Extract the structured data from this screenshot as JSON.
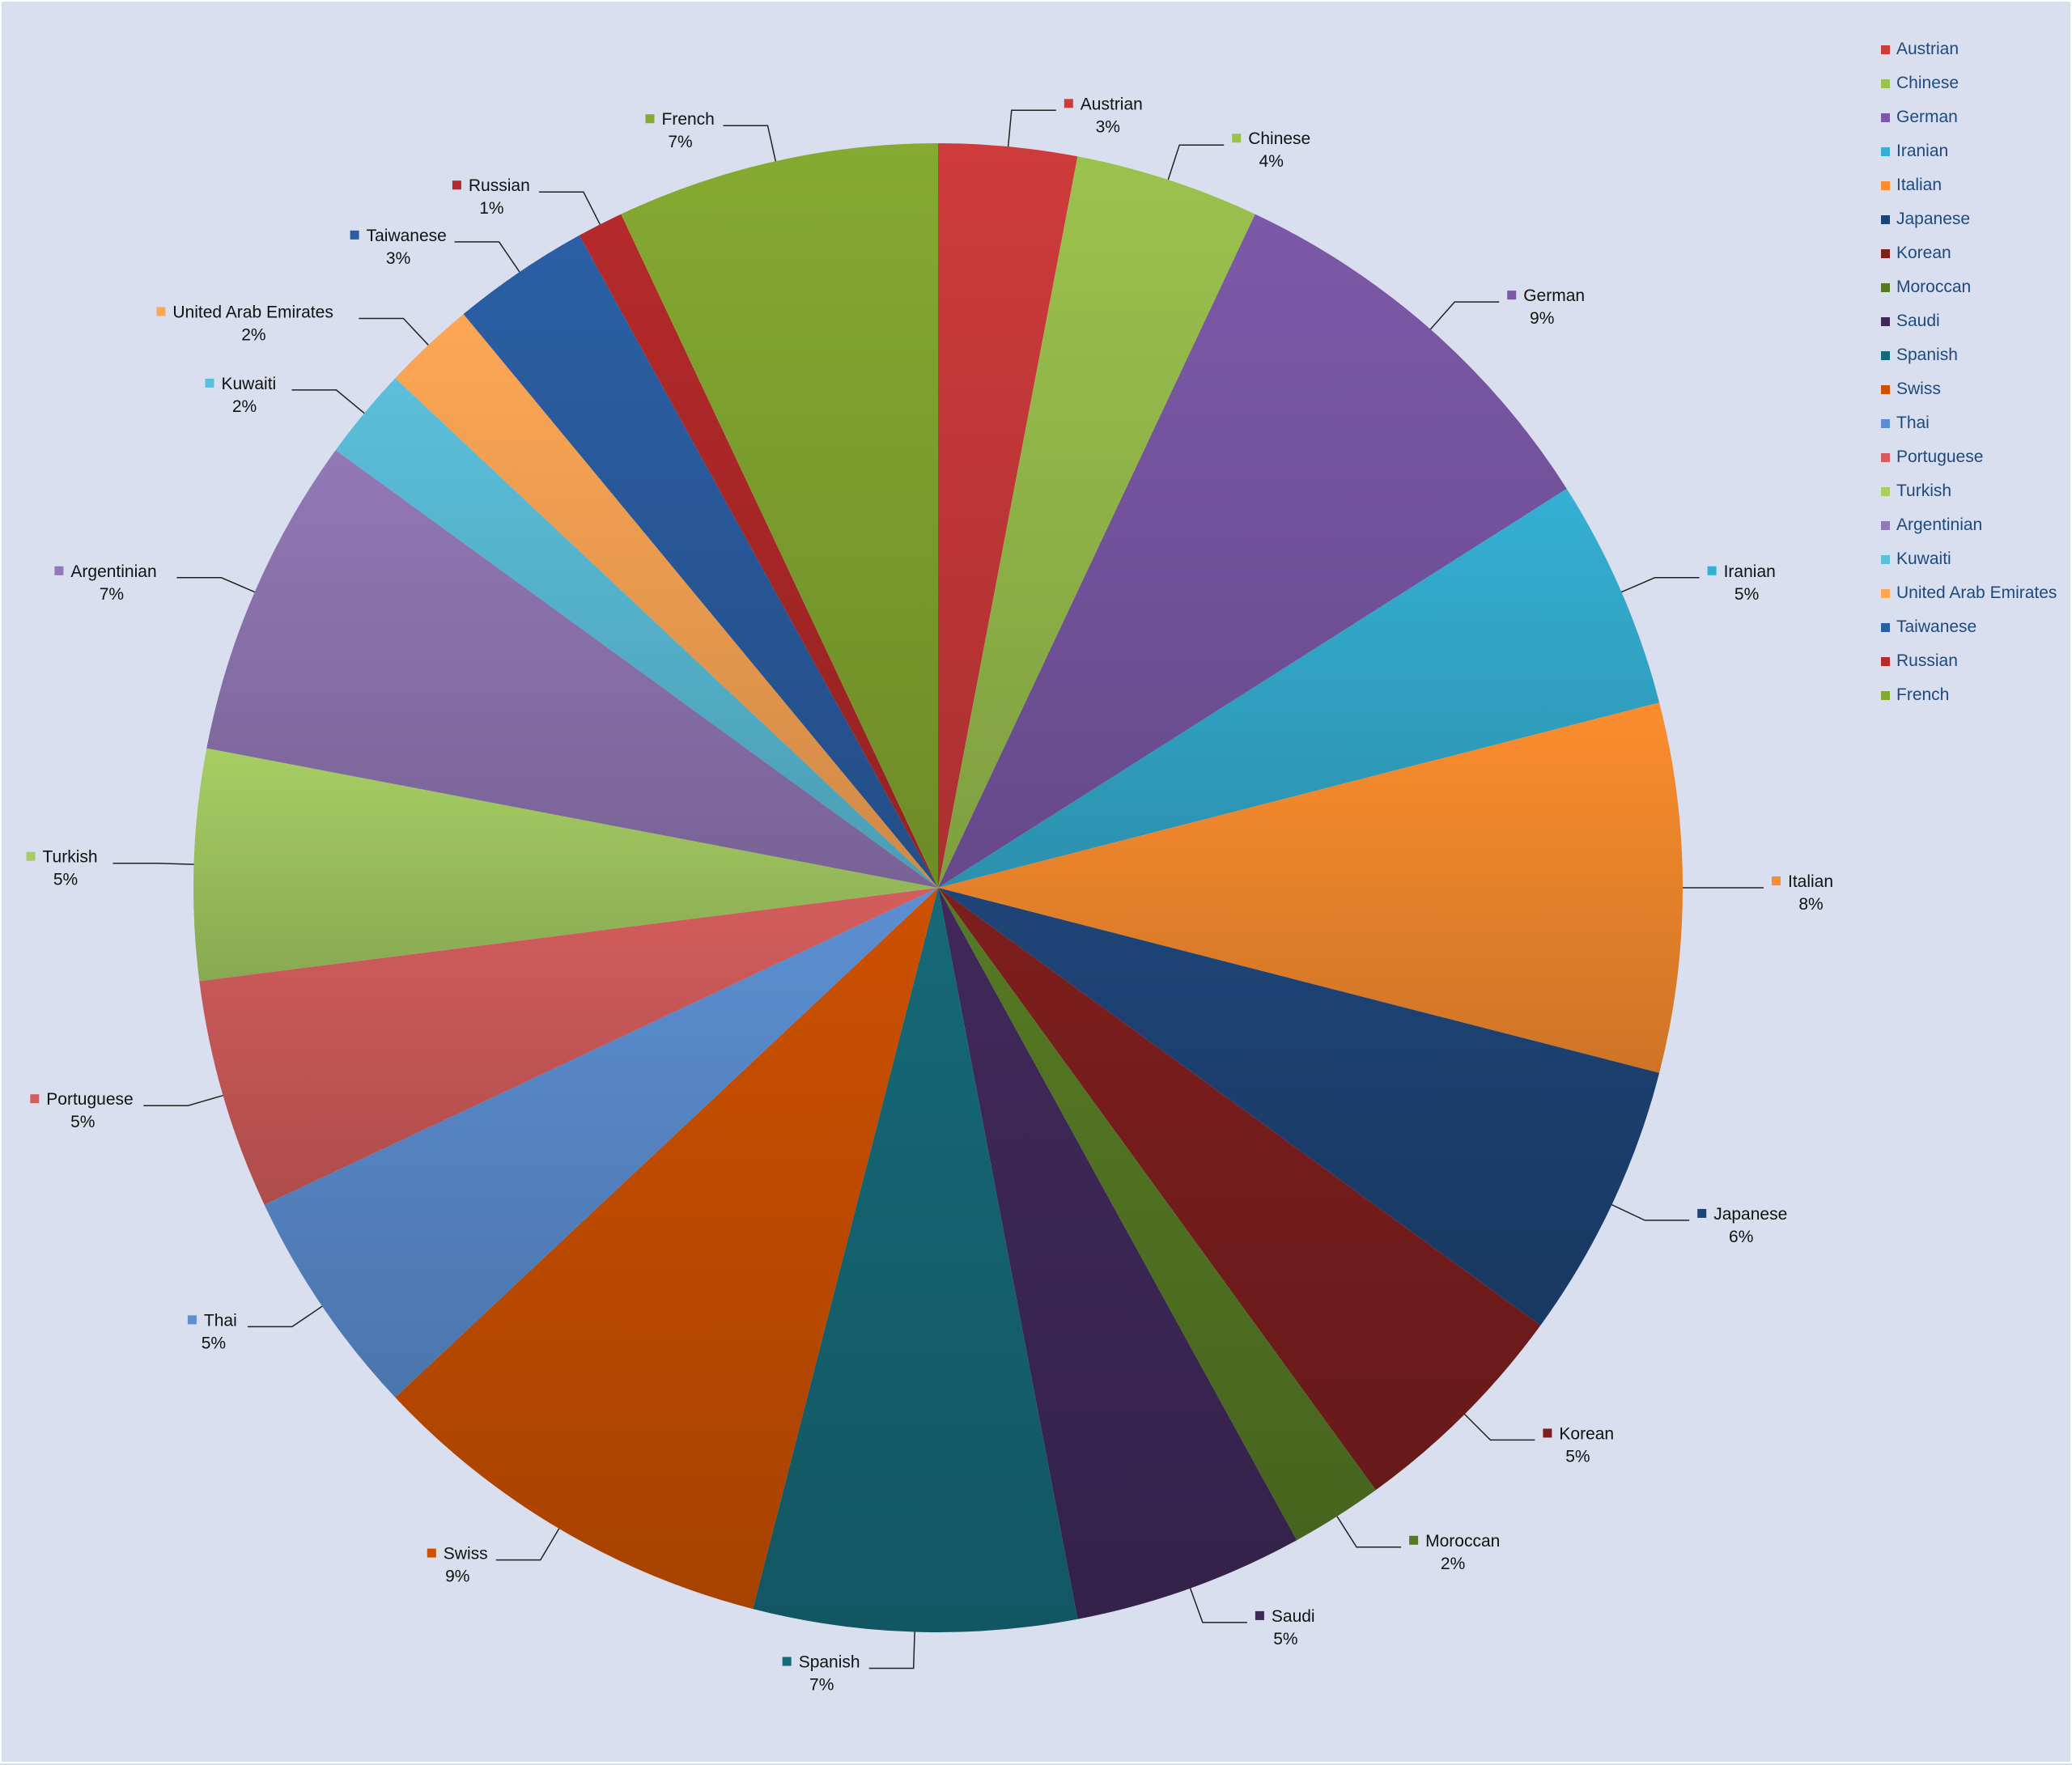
{
  "chart_data": {
    "type": "pie",
    "title": "",
    "legend_position": "top-right",
    "slices": [
      {
        "label": "Austrian",
        "value": 3,
        "pct_label": "3%",
        "color": "#cf3b3b"
      },
      {
        "label": "Chinese",
        "value": 4,
        "pct_label": "4%",
        "color": "#9bc24e"
      },
      {
        "label": "German",
        "value": 9,
        "pct_label": "9%",
        "color": "#7c59a8"
      },
      {
        "label": "Iranian",
        "value": 5,
        "pct_label": "5%",
        "color": "#35b0d3"
      },
      {
        "label": "Italian",
        "value": 8,
        "pct_label": "8%",
        "color": "#fb8d2e"
      },
      {
        "label": "Japanese",
        "value": 6,
        "pct_label": "6%",
        "color": "#1e4477"
      },
      {
        "label": "Korean",
        "value": 5,
        "pct_label": "5%",
        "color": "#7e1e1e"
      },
      {
        "label": "Moroccan",
        "value": 2,
        "pct_label": "2%",
        "color": "#567a24"
      },
      {
        "label": "Saudi",
        "value": 5,
        "pct_label": "5%",
        "color": "#40295a"
      },
      {
        "label": "Spanish",
        "value": 7,
        "pct_label": "7%",
        "color": "#166978"
      },
      {
        "label": "Swiss",
        "value": 9,
        "pct_label": "9%",
        "color": "#cc5000"
      },
      {
        "label": "Thai",
        "value": 5,
        "pct_label": "5%",
        "color": "#5c8fd2"
      },
      {
        "label": "Portuguese",
        "value": 5,
        "pct_label": "5%",
        "color": "#d45d5d"
      },
      {
        "label": "Turkish",
        "value": 5,
        "pct_label": "5%",
        "color": "#a6ce63"
      },
      {
        "label": "Argentinian",
        "value": 7,
        "pct_label": "7%",
        "color": "#9278b6"
      },
      {
        "label": "Kuwaiti",
        "value": 2,
        "pct_label": "2%",
        "color": "#5cbfdb"
      },
      {
        "label": "United Arab Emirates",
        "value": 2,
        "pct_label": "2%",
        "color": "#fda755"
      },
      {
        "label": "Taiwanese",
        "value": 3,
        "pct_label": "3%",
        "color": "#2b5fa5"
      },
      {
        "label": "Russian",
        "value": 1,
        "pct_label": "1%",
        "color": "#b52a2a"
      },
      {
        "label": "French",
        "value": 7,
        "pct_label": "7%",
        "color": "#85aa31"
      }
    ]
  }
}
